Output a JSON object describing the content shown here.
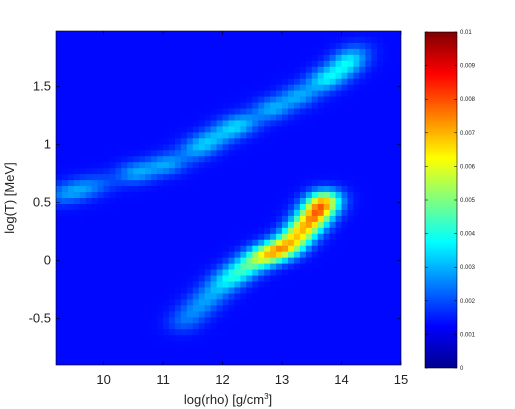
{
  "chart_data": {
    "type": "heatmap",
    "title": "",
    "xlabel": "log(rho) [g/cm",
    "xlabel_sup": "3",
    "xlabel_end": "]",
    "ylabel": "log(T) [MeV]",
    "xlim": [
      9.2,
      15.0
    ],
    "ylim": [
      -0.9,
      1.98
    ],
    "x_ticks": [
      10,
      11,
      12,
      13,
      14,
      15
    ],
    "x_tick_labels": [
      "10",
      "11",
      "12",
      "13",
      "14",
      "15"
    ],
    "y_ticks": [
      -0.5,
      0,
      0.5,
      1,
      1.5
    ],
    "y_tick_labels": [
      "-0.5",
      "0",
      "0.5",
      "1",
      "1.5"
    ],
    "colormap": "jet",
    "colorbar": {
      "range": [
        0,
        0.01
      ],
      "ticks": [
        0,
        0.001,
        0.002,
        0.003,
        0.004,
        0.005,
        0.006,
        0.007,
        0.008,
        0.009,
        0.01
      ],
      "tick_labels": [
        "0",
        "0.001",
        "0.002",
        "0.003",
        "0.004",
        "0.005",
        "0.006",
        "0.007",
        "0.008",
        "0.009",
        "0.01"
      ]
    },
    "grid": false,
    "features": [
      {
        "name": "upper diagonal band",
        "x": [
          9.2,
          10.5,
          11.2,
          12.0,
          12.8,
          13.4,
          14.0,
          14.4
        ],
        "y": [
          0.55,
          0.75,
          0.85,
          1.1,
          1.3,
          1.45,
          1.65,
          1.88
        ],
        "peak": 0.0045
      },
      {
        "name": "lower dense branch",
        "x": [
          11.3,
          12.0,
          12.6,
          13.1,
          13.5,
          13.8
        ],
        "y": [
          -0.55,
          -0.2,
          0.02,
          0.12,
          0.35,
          0.58
        ],
        "peak": 0.01
      }
    ]
  }
}
